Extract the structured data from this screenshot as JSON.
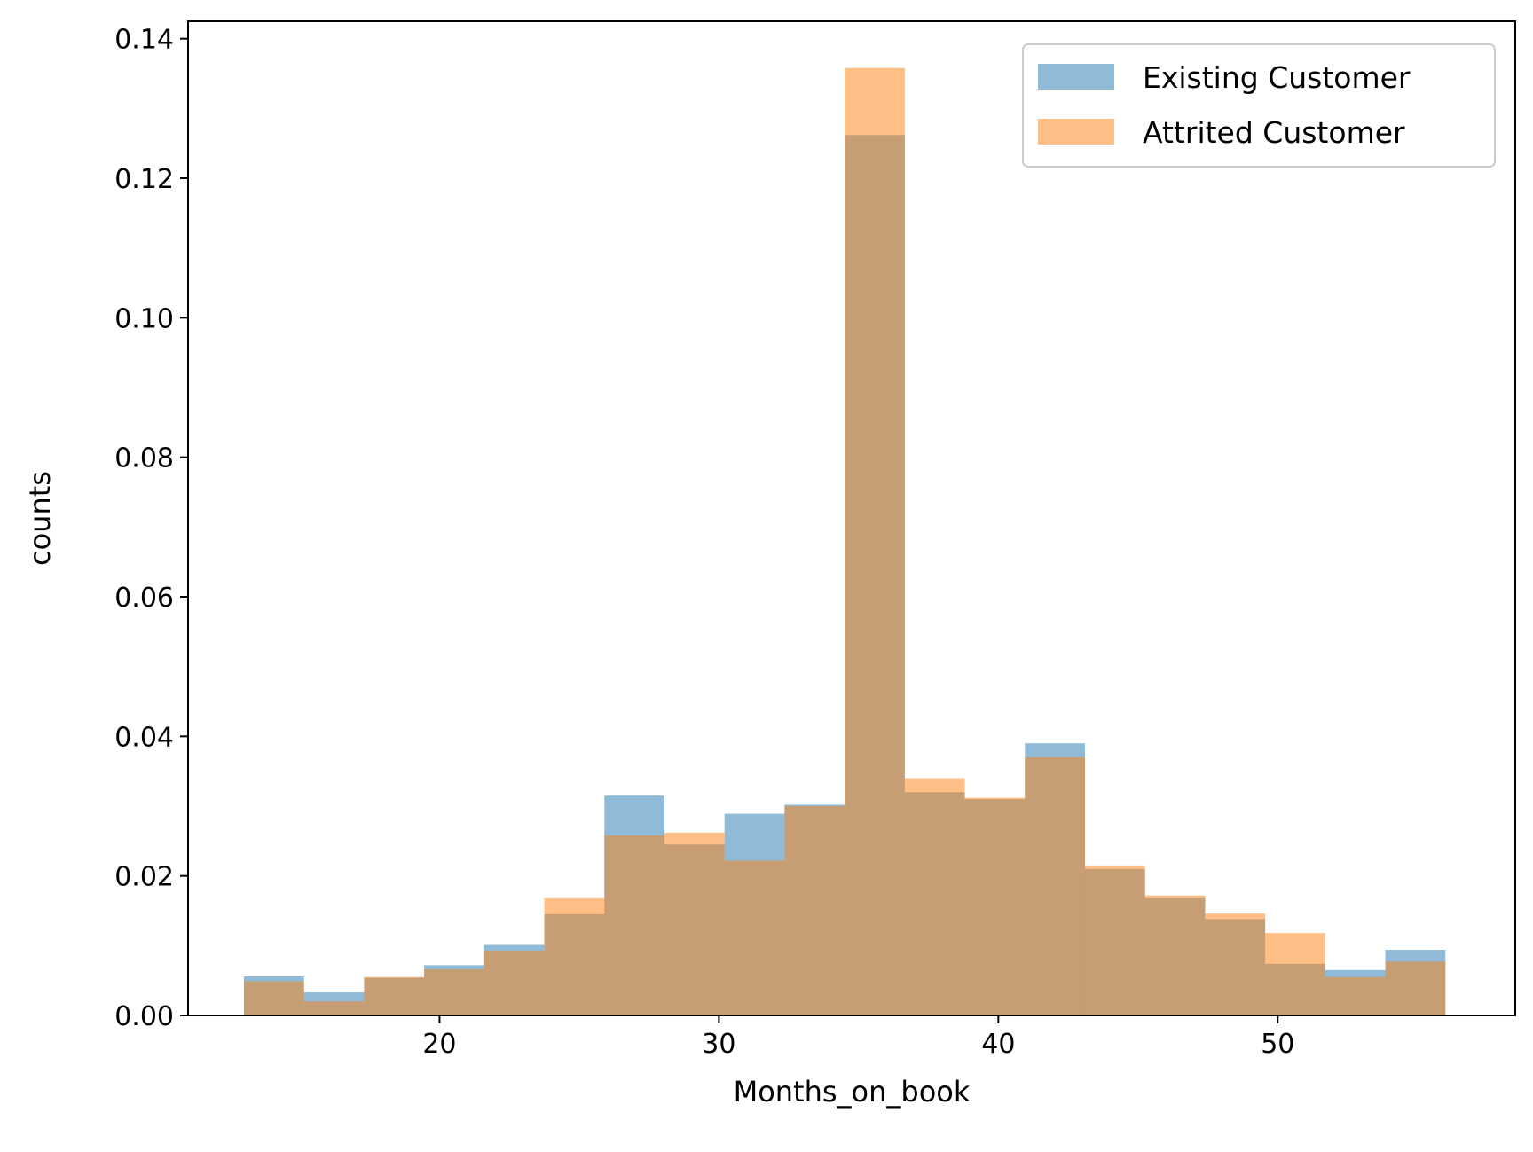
{
  "chart_data": {
    "type": "bar",
    "xlabel": "Months_on_book",
    "ylabel": "counts",
    "xlim": [
      11.0,
      58.5
    ],
    "ylim": [
      0,
      0.1425
    ],
    "xticks": [
      20,
      30,
      40,
      50
    ],
    "yticks": [
      0.0,
      0.02,
      0.04,
      0.06,
      0.08,
      0.1,
      0.12,
      0.14
    ],
    "grid": false,
    "legend_position": "top-right",
    "bin_edges": [
      13,
      15.15,
      17.3,
      19.45,
      21.6,
      23.75,
      25.9,
      28.05,
      30.2,
      32.35,
      34.5,
      36.65,
      38.8,
      40.95,
      43.1,
      45.25,
      47.4,
      49.55,
      51.7,
      53.85,
      56
    ],
    "series": [
      {
        "name": "Existing Customer",
        "color": "#1f77b4",
        "opacity": 0.5,
        "values": [
          0.0056,
          0.0033,
          0.0054,
          0.0072,
          0.0101,
          0.0145,
          0.0315,
          0.0245,
          0.0289,
          0.0302,
          0.1262,
          0.032,
          0.031,
          0.039,
          0.021,
          0.0168,
          0.0138,
          0.0074,
          0.0065,
          0.0094
        ]
      },
      {
        "name": "Attrited Customer",
        "color": "#ff7f0e",
        "opacity": 0.5,
        "values": [
          0.0049,
          0.002,
          0.0055,
          0.0066,
          0.0093,
          0.0168,
          0.0258,
          0.0262,
          0.0222,
          0.03,
          0.1358,
          0.034,
          0.0312,
          0.037,
          0.0215,
          0.0172,
          0.0146,
          0.0118,
          0.0055,
          0.0077
        ]
      }
    ]
  }
}
